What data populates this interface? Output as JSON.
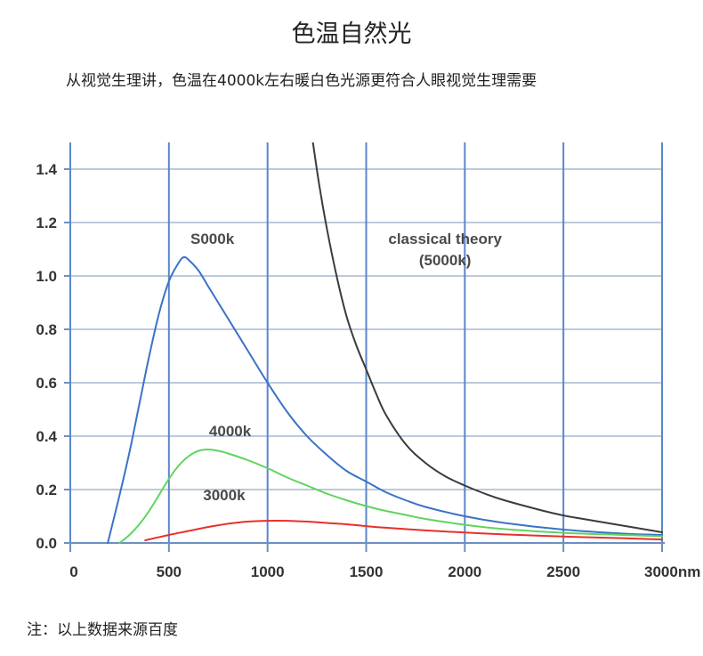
{
  "title": "色温自然光",
  "subtitle": "从视觉生理讲，色温在4000k左右暖白色光源更符合人眼视觉生理需要",
  "footnote": "注：以上数据来源百度",
  "chart_data": {
    "type": "line",
    "xlim": [
      0,
      3000
    ],
    "ylim": [
      0,
      1.5
    ],
    "x_ticks": [
      0,
      500,
      1000,
      1500,
      2000,
      2500,
      3000
    ],
    "x_tick_labels": [
      "0",
      "500",
      "1000",
      "1500",
      "2000",
      "2500",
      "3000nm"
    ],
    "y_ticks": [
      0.0,
      0.2,
      0.4,
      0.6,
      0.8,
      1.0,
      1.2,
      1.4
    ],
    "y_tick_labels": [
      "0.0",
      "0.2",
      "0.4",
      "0.6",
      "0.8",
      "1.0",
      "1.2",
      "1.4"
    ],
    "grid": true,
    "series": [
      {
        "name": "S000k",
        "color": "#3a73c6",
        "x": [
          190,
          250,
          300,
          350,
          400,
          450,
          500,
          550,
          575,
          600,
          650,
          700,
          750,
          800,
          900,
          1000,
          1100,
          1200,
          1300,
          1400,
          1500,
          1600,
          1700,
          1800,
          2000,
          2200,
          2500,
          2800,
          3000
        ],
        "y": [
          0.0,
          0.18,
          0.34,
          0.52,
          0.7,
          0.86,
          0.98,
          1.05,
          1.07,
          1.06,
          1.02,
          0.96,
          0.9,
          0.84,
          0.72,
          0.6,
          0.49,
          0.4,
          0.33,
          0.27,
          0.23,
          0.19,
          0.16,
          0.135,
          0.1,
          0.075,
          0.05,
          0.035,
          0.03
        ]
      },
      {
        "name": "4000k",
        "color": "#5fd45f",
        "x": [
          250,
          300,
          350,
          400,
          450,
          500,
          550,
          600,
          650,
          700,
          750,
          800,
          900,
          1000,
          1100,
          1200,
          1300,
          1400,
          1500,
          1600,
          1700,
          1800,
          2000,
          2200,
          2500,
          2800,
          3000
        ],
        "y": [
          0.0,
          0.03,
          0.07,
          0.12,
          0.18,
          0.24,
          0.29,
          0.325,
          0.345,
          0.35,
          0.345,
          0.335,
          0.31,
          0.28,
          0.245,
          0.215,
          0.185,
          0.16,
          0.138,
          0.12,
          0.105,
          0.09,
          0.068,
          0.052,
          0.038,
          0.03,
          0.025
        ]
      },
      {
        "name": "3000k",
        "color": "#e8302a",
        "x": [
          380,
          500,
          600,
          700,
          800,
          900,
          1000,
          1100,
          1200,
          1300,
          1400,
          1500,
          1600,
          1800,
          2000,
          2200,
          2500,
          2800,
          3000
        ],
        "y": [
          0.01,
          0.03,
          0.045,
          0.06,
          0.072,
          0.08,
          0.083,
          0.083,
          0.08,
          0.075,
          0.07,
          0.063,
          0.057,
          0.047,
          0.039,
          0.032,
          0.024,
          0.018,
          0.013
        ]
      },
      {
        "name": "classical theory\n(5000k)",
        "color": "#3b3b3b",
        "x": [
          1230,
          1260,
          1300,
          1350,
          1400,
          1450,
          1500,
          1550,
          1600,
          1700,
          1800,
          1900,
          2000,
          2100,
          2200,
          2400,
          2500,
          2600,
          2800,
          3000
        ],
        "y": [
          1.5,
          1.35,
          1.18,
          1.0,
          0.85,
          0.74,
          0.65,
          0.56,
          0.48,
          0.37,
          0.3,
          0.25,
          0.215,
          0.185,
          0.16,
          0.12,
          0.103,
          0.09,
          0.065,
          0.04
        ]
      }
    ],
    "annotations": [
      {
        "text": "S000k",
        "x": 720,
        "y": 1.12
      },
      {
        "text": "4000k",
        "x": 810,
        "y": 0.4
      },
      {
        "text": "3000k",
        "x": 780,
        "y": 0.16
      },
      {
        "text": "classical theory",
        "x": 1900,
        "y": 1.12
      },
      {
        "text": "(5000k)",
        "x": 1900,
        "y": 1.04
      }
    ]
  }
}
